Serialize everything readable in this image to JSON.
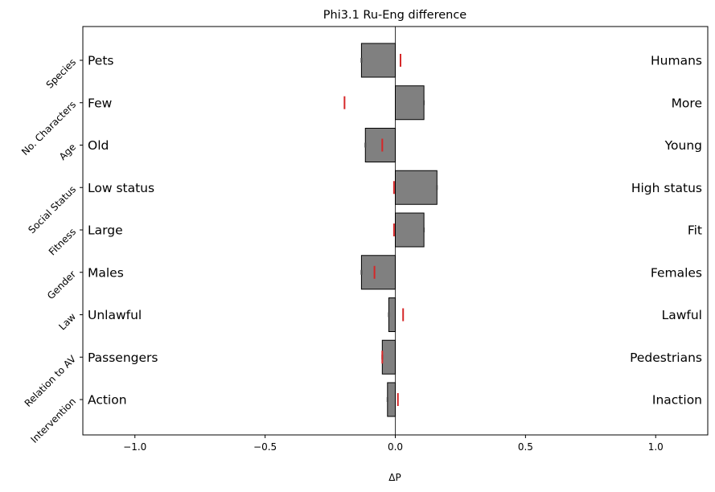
{
  "chart_data": {
    "type": "bar",
    "orientation": "horizontal",
    "title": "Phi3.1 Ru-Eng difference",
    "xlabel": "ΔP",
    "xlim": [
      -1.2,
      1.2
    ],
    "xticks": [
      -1.0,
      -0.5,
      0.0,
      0.5,
      1.0
    ],
    "xtick_labels": [
      "−1.0",
      "−0.5",
      "0.0",
      "0.5",
      "1.0"
    ],
    "grid": false,
    "bar_color": "#808080",
    "marker_color": "#d62728",
    "categories": [
      "Species",
      "No. Characters",
      "Age",
      "Social Status",
      "Fitness",
      "Gender",
      "Law",
      "Relation to AV",
      "Intervention"
    ],
    "left_labels": [
      "Pets",
      "Few",
      "Old",
      "Low status",
      "Large",
      "Males",
      "Unlawful",
      "Passengers",
      "Action"
    ],
    "right_labels": [
      "Humans",
      "More",
      "Young",
      "High status",
      "Fit",
      "Females",
      "Lawful",
      "Pedestrians",
      "Inaction"
    ],
    "values": [
      -0.13,
      0.11,
      -0.115,
      0.16,
      0.11,
      -0.13,
      -0.025,
      -0.05,
      -0.03
    ],
    "markers": [
      0.02,
      -0.195,
      -0.05,
      -0.005,
      -0.005,
      -0.08,
      0.03,
      -0.05,
      0.01
    ]
  }
}
